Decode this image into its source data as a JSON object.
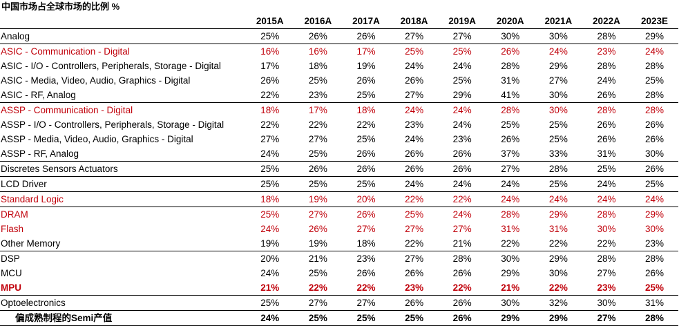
{
  "title": "中国市场占全球市场的比例 %",
  "colors": {
    "red": "#c0000a",
    "black": "#000000"
  },
  "years": [
    "2015A",
    "2016A",
    "2017A",
    "2018A",
    "2019A",
    "2020A",
    "2021A",
    "2022A",
    "2023E"
  ],
  "rows": [
    {
      "label": "Analog",
      "values": [
        "25%",
        "26%",
        "26%",
        "27%",
        "27%",
        "30%",
        "30%",
        "28%",
        "29%"
      ],
      "style": "normal",
      "sep": true
    },
    {
      "label": "ASIC - Communication - Digital",
      "values": [
        "16%",
        "16%",
        "17%",
        "25%",
        "25%",
        "26%",
        "24%",
        "23%",
        "24%"
      ],
      "style": "red",
      "sep": false
    },
    {
      "label": "ASIC - I/O - Controllers, Peripherals, Storage - Digital",
      "values": [
        "17%",
        "18%",
        "19%",
        "24%",
        "24%",
        "28%",
        "29%",
        "28%",
        "28%"
      ],
      "style": "normal",
      "sep": false
    },
    {
      "label": "ASIC - Media, Video, Audio, Graphics - Digital",
      "values": [
        "26%",
        "25%",
        "26%",
        "26%",
        "25%",
        "31%",
        "27%",
        "24%",
        "25%"
      ],
      "style": "normal",
      "sep": false
    },
    {
      "label": "ASIC - RF, Analog",
      "values": [
        "22%",
        "23%",
        "25%",
        "27%",
        "29%",
        "41%",
        "30%",
        "26%",
        "28%"
      ],
      "style": "normal",
      "sep": true
    },
    {
      "label": "ASSP - Communication - Digital",
      "values": [
        "18%",
        "17%",
        "18%",
        "24%",
        "24%",
        "28%",
        "30%",
        "28%",
        "28%"
      ],
      "style": "red",
      "sep": false
    },
    {
      "label": "ASSP - I/O - Controllers, Peripherals, Storage - Digital",
      "values": [
        "22%",
        "22%",
        "22%",
        "23%",
        "24%",
        "25%",
        "25%",
        "26%",
        "26%"
      ],
      "style": "normal",
      "sep": false
    },
    {
      "label": "ASSP - Media, Video, Audio, Graphics - Digital",
      "values": [
        "27%",
        "27%",
        "25%",
        "24%",
        "23%",
        "26%",
        "25%",
        "26%",
        "26%"
      ],
      "style": "normal",
      "sep": false
    },
    {
      "label": "ASSP - RF, Analog",
      "values": [
        "24%",
        "25%",
        "26%",
        "26%",
        "26%",
        "37%",
        "33%",
        "31%",
        "30%"
      ],
      "style": "normal",
      "sep": true
    },
    {
      "label": "Discretes Sensors Actuators",
      "values": [
        "25%",
        "26%",
        "26%",
        "26%",
        "26%",
        "27%",
        "28%",
        "25%",
        "26%"
      ],
      "style": "normal",
      "sep": true
    },
    {
      "label": "LCD Driver",
      "values": [
        "25%",
        "25%",
        "25%",
        "24%",
        "24%",
        "24%",
        "25%",
        "24%",
        "25%"
      ],
      "style": "normal",
      "sep": true
    },
    {
      "label": "Standard Logic",
      "values": [
        "18%",
        "19%",
        "20%",
        "22%",
        "22%",
        "24%",
        "24%",
        "24%",
        "24%"
      ],
      "style": "red",
      "sep": true
    },
    {
      "label": "DRAM",
      "values": [
        "25%",
        "27%",
        "26%",
        "25%",
        "24%",
        "28%",
        "29%",
        "28%",
        "29%"
      ],
      "style": "red",
      "sep": false
    },
    {
      "label": "Flash",
      "values": [
        "24%",
        "26%",
        "27%",
        "27%",
        "27%",
        "31%",
        "31%",
        "30%",
        "30%"
      ],
      "style": "red",
      "sep": false
    },
    {
      "label": "Other Memory",
      "values": [
        "19%",
        "19%",
        "18%",
        "22%",
        "21%",
        "22%",
        "22%",
        "22%",
        "23%"
      ],
      "style": "normal",
      "sep": true
    },
    {
      "label": "DSP",
      "values": [
        "20%",
        "21%",
        "23%",
        "27%",
        "28%",
        "30%",
        "29%",
        "28%",
        "28%"
      ],
      "style": "normal",
      "sep": false
    },
    {
      "label": "MCU",
      "values": [
        "24%",
        "25%",
        "26%",
        "26%",
        "26%",
        "29%",
        "30%",
        "27%",
        "26%"
      ],
      "style": "normal",
      "sep": false
    },
    {
      "label": "MPU",
      "values": [
        "21%",
        "22%",
        "22%",
        "23%",
        "22%",
        "21%",
        "22%",
        "23%",
        "25%"
      ],
      "style": "redbold",
      "sep": true
    },
    {
      "label": "Optoelectronics",
      "values": [
        "25%",
        "27%",
        "27%",
        "26%",
        "26%",
        "30%",
        "32%",
        "30%",
        "31%"
      ],
      "style": "normal",
      "sep": false
    }
  ],
  "total": {
    "label": "偏成熟制程的Semi产值",
    "values": [
      "24%",
      "25%",
      "25%",
      "25%",
      "26%",
      "29%",
      "29%",
      "27%",
      "28%"
    ]
  }
}
